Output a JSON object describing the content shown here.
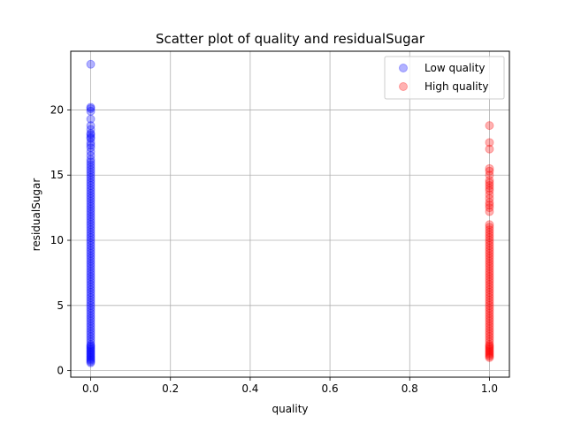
{
  "chart_data": {
    "type": "scatter",
    "title": "Scatter plot of quality and residualSugar",
    "xlabel": "quality",
    "ylabel": "residualSugar",
    "xlim": [
      -0.05,
      1.05
    ],
    "ylim": [
      -0.5,
      24.5
    ],
    "xticks": [
      0.0,
      0.2,
      0.4,
      0.6,
      0.8,
      1.0
    ],
    "xtick_labels": [
      "0.0",
      "0.2",
      "0.4",
      "0.6",
      "0.8",
      "1.0"
    ],
    "yticks": [
      0,
      5,
      10,
      15,
      20
    ],
    "ytick_labels": [
      "0",
      "5",
      "10",
      "15",
      "20"
    ],
    "grid": true,
    "legend_position": "top-right",
    "series": [
      {
        "name": "Low quality",
        "color": "#0000ff",
        "alpha": 0.3,
        "x": 0,
        "y": [
          23.5,
          20.2,
          20.1,
          19.9,
          19.3,
          18.8,
          18.5,
          18.2,
          18.1,
          17.9,
          17.8,
          17.5,
          17.3,
          17.1,
          16.8,
          16.5,
          16.2,
          16.0,
          15.8,
          15.6,
          15.4,
          15.2,
          15.0,
          14.8,
          14.6,
          14.4,
          14.2,
          14.0,
          13.8,
          13.6,
          13.4,
          13.2,
          13.0,
          12.8,
          12.6,
          12.4,
          12.2,
          12.0,
          11.8,
          11.6,
          11.4,
          11.2,
          11.0,
          10.8,
          10.6,
          10.4,
          10.2,
          10.0,
          9.8,
          9.6,
          9.4,
          9.2,
          9.0,
          8.8,
          8.6,
          8.4,
          8.2,
          8.0,
          7.8,
          7.6,
          7.4,
          7.2,
          7.0,
          6.8,
          6.6,
          6.4,
          6.2,
          6.0,
          5.8,
          5.6,
          5.4,
          5.2,
          5.0,
          4.8,
          4.6,
          4.4,
          4.2,
          4.0,
          3.8,
          3.6,
          3.4,
          3.2,
          3.0,
          2.8,
          2.6,
          2.4,
          2.2,
          2.0,
          1.9,
          1.8,
          1.7,
          1.6,
          1.5,
          1.4,
          1.3,
          1.2,
          1.1,
          1.0,
          0.9,
          0.8,
          0.7,
          0.6
        ]
      },
      {
        "name": "High quality",
        "color": "#ff0000",
        "alpha": 0.3,
        "x": 1,
        "y": [
          18.8,
          17.5,
          17.0,
          15.5,
          15.3,
          15.0,
          14.6,
          14.4,
          14.2,
          14.0,
          13.8,
          13.5,
          13.2,
          12.9,
          12.7,
          12.5,
          12.2,
          11.2,
          11.0,
          10.8,
          10.6,
          10.4,
          10.2,
          10.0,
          9.8,
          9.6,
          9.4,
          9.2,
          9.0,
          8.8,
          8.6,
          8.4,
          8.2,
          8.0,
          7.8,
          7.6,
          7.4,
          7.2,
          7.0,
          6.8,
          6.6,
          6.4,
          6.2,
          6.0,
          5.8,
          5.6,
          5.4,
          5.2,
          5.0,
          4.8,
          4.6,
          4.4,
          4.2,
          4.0,
          3.8,
          3.6,
          3.4,
          3.2,
          3.0,
          2.8,
          2.6,
          2.4,
          2.2,
          2.0,
          1.9,
          1.8,
          1.7,
          1.6,
          1.5,
          1.4,
          1.3,
          1.2,
          1.1,
          1.0
        ]
      }
    ]
  }
}
